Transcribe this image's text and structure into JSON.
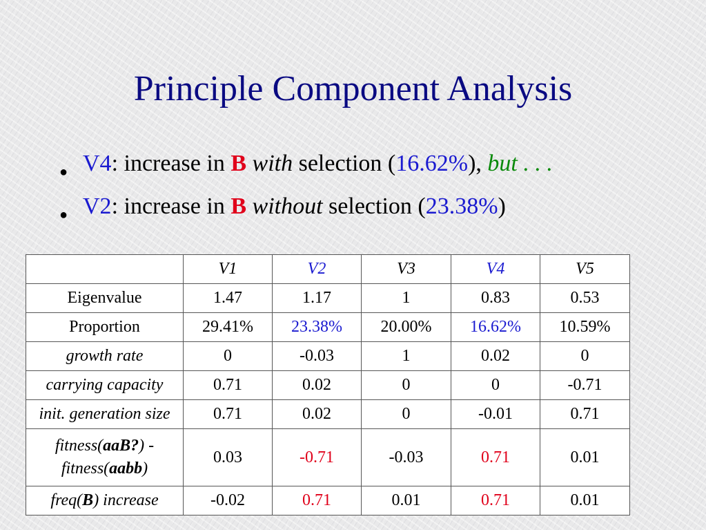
{
  "title": "Principle Component Analysis",
  "bullets": [
    {
      "var": "V4",
      "text1": ": increase in ",
      "bold": "B",
      "space1": " ",
      "italic": "with",
      "text2": " selection (",
      "pct": "16.62%",
      "text3": "), ",
      "tail": "but . . ."
    },
    {
      "var": "V2",
      "text1": ": increase in ",
      "bold": "B",
      "space1": " ",
      "italic": "without",
      "text2": " selection (",
      "pct": "23.38%",
      "text3": ")"
    }
  ],
  "colors": {
    "title": "#0a0a82",
    "highlight_blue": "#1a1ad0",
    "highlight_red": "#e0001a",
    "highlight_green": "#0a8a0a"
  },
  "table": {
    "headers": [
      "",
      "V1",
      "V2",
      "V3",
      "V4",
      "V5"
    ],
    "rows": [
      {
        "label": "Eigenvalue",
        "values": [
          "1.47",
          "1.17",
          "1",
          "0.83",
          "0.53"
        ]
      },
      {
        "label": "Proportion",
        "values": [
          "29.41%",
          "23.38%",
          "20.00%",
          "16.62%",
          "10.59%"
        ]
      },
      {
        "label": "growth rate",
        "values": [
          "0",
          "-0.03",
          "1",
          "0.02",
          "0"
        ]
      },
      {
        "label": "carrying capacity",
        "values": [
          "0.71",
          "0.02",
          "0",
          "0",
          "-0.71"
        ]
      },
      {
        "label": "init. generation size",
        "values": [
          "0.71",
          "0.02",
          "0",
          "-0.01",
          "0.71"
        ]
      },
      {
        "label_parts": [
          "fitness(",
          "aaB?",
          ") -",
          "fitness(",
          "aabb",
          ")"
        ],
        "values": [
          "0.03",
          "-0.71",
          "-0.03",
          "0.71",
          "0.01"
        ]
      },
      {
        "label_parts": [
          "freq(",
          "B",
          ") increase"
        ],
        "values": [
          "-0.02",
          "0.71",
          "0.01",
          "0.71",
          "0.01"
        ]
      }
    ]
  }
}
